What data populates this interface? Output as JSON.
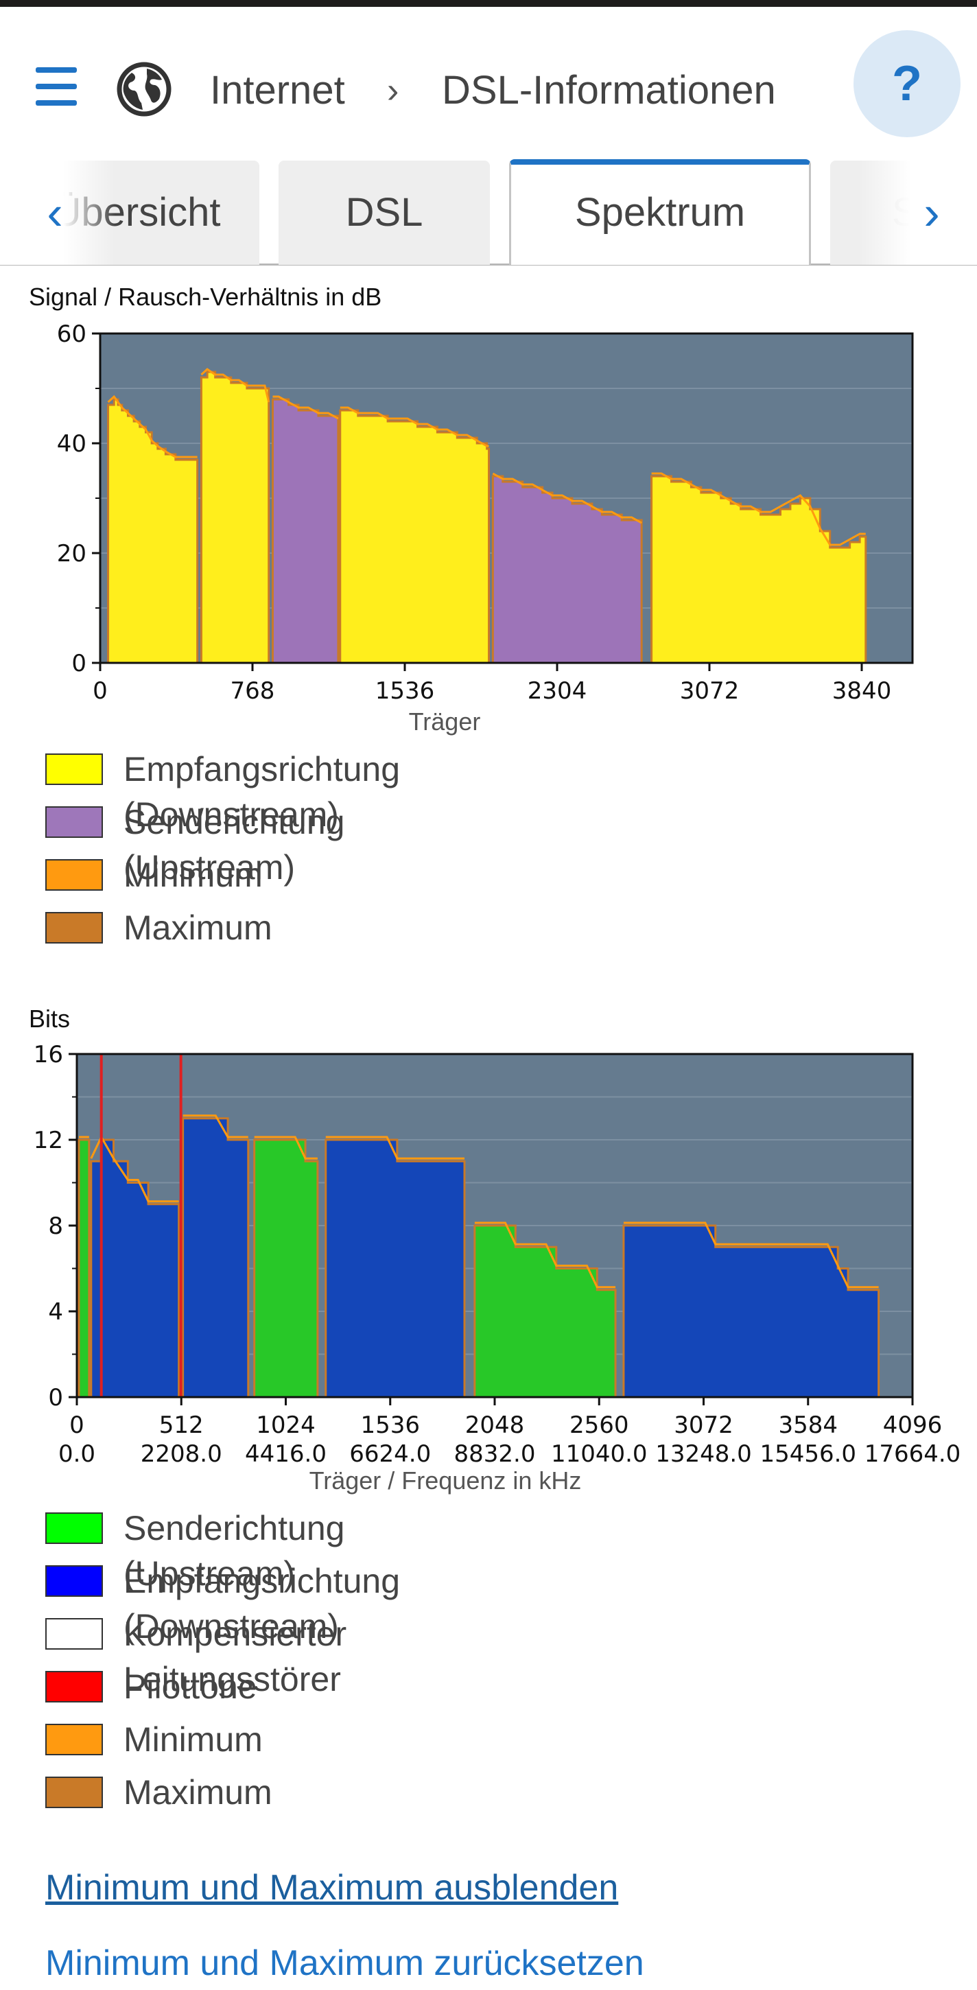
{
  "header": {
    "breadcrumb_1": "Internet",
    "breadcrumb_sep": "›",
    "breadcrumb_2": "DSL-Informationen",
    "help_label": "?"
  },
  "tabs": [
    {
      "label": "Übersicht"
    },
    {
      "label": "DSL"
    },
    {
      "label": "Spektrum",
      "active": true
    },
    {
      "label": "Stat"
    }
  ],
  "colors": {
    "accent": "#1f73c5",
    "plot_bg": "#657b8f",
    "downstream_snr": "#ffee1c",
    "upstream_snr": "#9d74b8",
    "minimum": "#ff9a10",
    "maximum": "#c97a28",
    "upstream_bits": "#28c828",
    "downstream_bits": "#1446b8",
    "pilot": "#e02020"
  },
  "chart_data": [
    {
      "type": "area",
      "title": "Signal / Rausch-Verhältnis in dB",
      "xlabel": "Träger",
      "ylabel": "",
      "xlim": [
        0,
        4096
      ],
      "ylim": [
        0,
        60
      ],
      "xticks": [
        "0",
        "768",
        "1536",
        "2304",
        "3072",
        "3840"
      ],
      "yticks": [
        "0",
        "20",
        "40",
        "60"
      ],
      "legend": [
        {
          "label": "Empfangsrichtung (Downstream)",
          "color": "#ffff00"
        },
        {
          "label": "Senderichtung (Upstream)",
          "color": "#9e77ba"
        },
        {
          "label": "Minimum",
          "color": "#ff9a10"
        },
        {
          "label": "Maximum",
          "color": "#c97a28"
        }
      ],
      "series": [
        {
          "band": "downstream",
          "x": [
            40,
            70,
            90,
            110,
            140,
            170,
            200,
            230,
            260,
            290,
            330,
            380,
            430,
            490
          ],
          "values": [
            47,
            48,
            47,
            46,
            45,
            44,
            43,
            42,
            40,
            39,
            38,
            37,
            37,
            37
          ]
        },
        {
          "band": "downstream",
          "x": [
            510,
            540,
            580,
            620,
            660,
            700,
            740,
            780,
            830,
            850
          ],
          "values": [
            52,
            53,
            52,
            52,
            51,
            51,
            50,
            50,
            50,
            47
          ]
        },
        {
          "band": "upstream",
          "x": [
            870,
            900,
            950,
            1000,
            1050,
            1100,
            1150,
            1200
          ],
          "values": [
            48,
            48,
            47,
            46,
            46,
            45,
            45,
            44
          ]
        },
        {
          "band": "downstream",
          "x": [
            1210,
            1250,
            1300,
            1350,
            1400,
            1450,
            1500,
            1550,
            1600,
            1650,
            1700,
            1750,
            1800,
            1850,
            1900,
            1950,
            1960
          ],
          "values": [
            46,
            46,
            45,
            45,
            45,
            44,
            44,
            44,
            43,
            43,
            42,
            42,
            41,
            41,
            40,
            39,
            39
          ]
        },
        {
          "band": "upstream",
          "x": [
            1980,
            2030,
            2080,
            2130,
            2180,
            2230,
            2280,
            2330,
            2380,
            2430,
            2480,
            2530,
            2580,
            2630,
            2680,
            2730
          ],
          "values": [
            34,
            33,
            33,
            32,
            32,
            31,
            30,
            30,
            29,
            29,
            28,
            27,
            27,
            26,
            26,
            25
          ]
        },
        {
          "band": "downstream",
          "x": [
            2780,
            2830,
            2880,
            2930,
            2980,
            3030,
            3080,
            3130,
            3180,
            3230,
            3280,
            3330,
            3380,
            3430,
            3480,
            3530,
            3580,
            3630,
            3680,
            3730,
            3780,
            3830,
            3860
          ],
          "values": [
            34,
            34,
            33,
            33,
            32,
            31,
            31,
            30,
            29,
            28,
            28,
            27,
            27,
            28,
            29,
            30,
            28,
            24,
            21,
            21,
            22,
            23,
            23
          ]
        }
      ]
    },
    {
      "type": "area",
      "title": "Bits",
      "xlabel": "Träger / Frequenz in kHz",
      "ylabel": "",
      "xlim": [
        0,
        4096
      ],
      "ylim": [
        0,
        16
      ],
      "xticks": [
        "0",
        "512",
        "1024",
        "1536",
        "2048",
        "2560",
        "3072",
        "3584",
        "4096"
      ],
      "xticks2": [
        "0.0",
        "2208.0",
        "4416.0",
        "6624.0",
        "8832.0",
        "11040.0",
        "13248.0",
        "15456.0",
        "17664.0"
      ],
      "yticks": [
        "0",
        "4",
        "8",
        "12",
        "16"
      ],
      "legend": [
        {
          "label": "Senderichtung (Upstream)",
          "color": "#00ff00"
        },
        {
          "label": "Empfangsrichtung (Downstream)",
          "color": "#0000ff"
        },
        {
          "label": "Kompensierter Leitungsstörer",
          "color": "#ffffff"
        },
        {
          "label": "Pilottöne",
          "color": "#ff0000"
        },
        {
          "label": "Minimum",
          "color": "#ff9a10"
        },
        {
          "label": "Maximum",
          "color": "#c97a28"
        }
      ],
      "pilot_tones": [
        120,
        510
      ],
      "series": [
        {
          "band": "upstream",
          "x": [
            10,
            40,
            60
          ],
          "values": [
            12,
            12,
            12
          ]
        },
        {
          "band": "downstream",
          "x": [
            70,
            120,
            180,
            250,
            300,
            350,
            400,
            450,
            500
          ],
          "values": [
            11,
            12,
            11,
            10,
            10,
            9,
            9,
            9,
            9
          ]
        },
        {
          "band": "downstream",
          "x": [
            520,
            560,
            620,
            680,
            740,
            800,
            840
          ],
          "values": [
            13,
            13,
            13,
            13,
            12,
            12,
            12
          ]
        },
        {
          "band": "upstream",
          "x": [
            870,
            920,
            970,
            1020,
            1070,
            1120,
            1180
          ],
          "values": [
            12,
            12,
            12,
            12,
            12,
            11,
            11
          ]
        },
        {
          "band": "downstream",
          "x": [
            1220,
            1270,
            1320,
            1370,
            1420,
            1470,
            1520,
            1570,
            1620,
            1670,
            1720,
            1770,
            1820,
            1870,
            1900
          ],
          "values": [
            12,
            12,
            12,
            12,
            12,
            12,
            12,
            11,
            11,
            11,
            11,
            11,
            11,
            11,
            11
          ]
        },
        {
          "band": "upstream",
          "x": [
            1950,
            2000,
            2050,
            2100,
            2150,
            2200,
            2250,
            2300,
            2350,
            2400,
            2450,
            2500,
            2550,
            2600,
            2640
          ],
          "values": [
            8,
            8,
            8,
            8,
            7,
            7,
            7,
            7,
            6,
            6,
            6,
            6,
            5,
            5,
            5
          ]
        },
        {
          "band": "downstream",
          "x": [
            2680,
            2730,
            2780,
            2830,
            2880,
            2930,
            2980,
            3030,
            3080,
            3130,
            3180,
            3230,
            3280,
            3330,
            3380,
            3430,
            3480,
            3530,
            3580,
            3630,
            3680,
            3730,
            3780,
            3830,
            3880,
            3930
          ],
          "values": [
            8,
            8,
            8,
            8,
            8,
            8,
            8,
            8,
            8,
            7,
            7,
            7,
            7,
            7,
            7,
            7,
            7,
            7,
            7,
            7,
            7,
            6,
            5,
            5,
            5,
            5
          ]
        }
      ]
    }
  ],
  "links": {
    "hide_minmax": "Minimum und Maximum ausblenden",
    "reset_minmax": "Minimum und Maximum zurücksetzen"
  }
}
